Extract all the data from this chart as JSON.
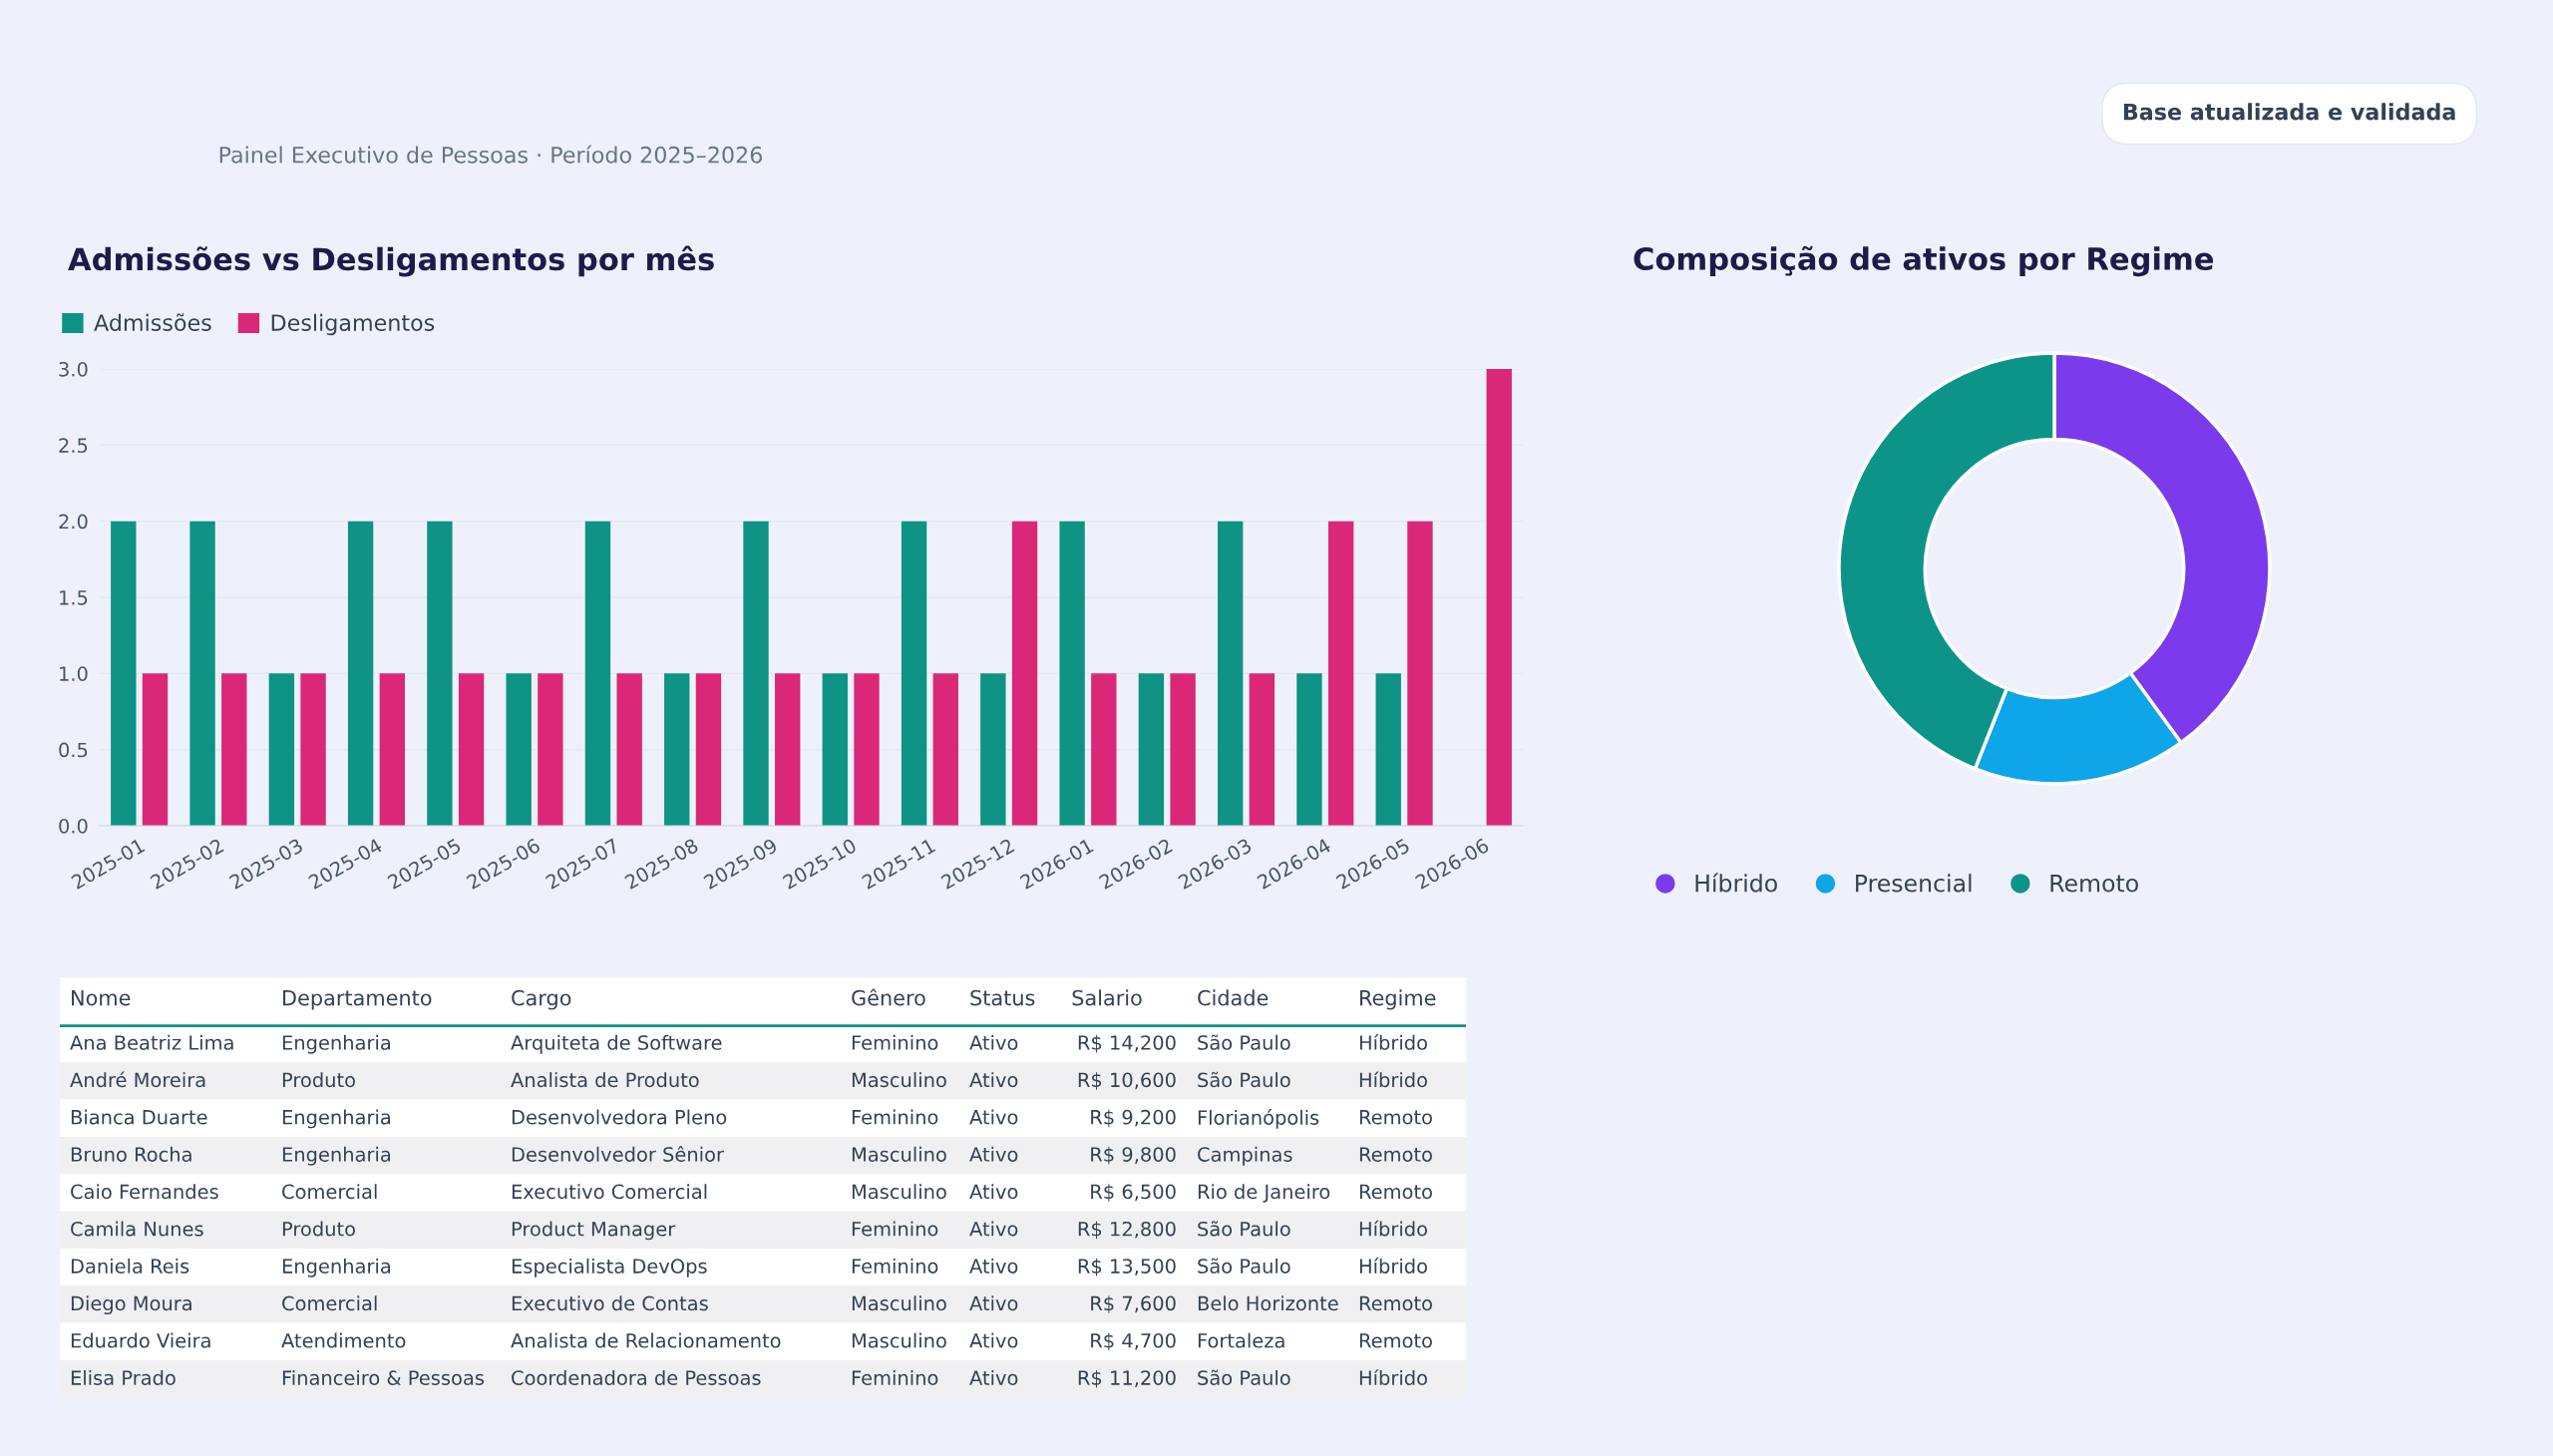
{
  "chart_data": [
    {
      "type": "other",
      "subtitle": "Painel Executivo de Pessoas · Período 2025–2026",
      "annotations": [
        "Base atualizada e validada"
      ]
    },
    {
      "type": "bar",
      "title": "Admissões vs Desligamentos por mês",
      "categories": [
        "2025-01",
        "2025-02",
        "2025-03",
        "2025-04",
        "2025-05",
        "2025-06",
        "2025-07",
        "2025-08",
        "2025-09",
        "2025-10",
        "2025-11",
        "2025-12",
        "2026-01",
        "2026-02",
        "2026-03",
        "2026-04",
        "2026-05",
        "2026-06"
      ],
      "series": [
        {
          "name": "Admissões",
          "color": "#0e9384",
          "values": [
            2,
            2,
            1,
            2,
            2,
            1,
            2,
            1,
            2,
            1,
            2,
            1,
            2,
            1,
            2,
            1,
            1,
            0
          ]
        },
        {
          "name": "Desligamentos",
          "color": "#db2777",
          "values": [
            1,
            1,
            1,
            1,
            1,
            1,
            1,
            1,
            1,
            1,
            1,
            2,
            1,
            1,
            1,
            2,
            2,
            3
          ]
        }
      ],
      "ylim": [
        0,
        3
      ],
      "yticks": [
        {
          "value": 0,
          "label": "0.0"
        },
        {
          "value": 0.5,
          "label": "0.5"
        },
        {
          "value": 1,
          "label": "1.0"
        },
        {
          "value": 1.5,
          "label": "1.5"
        },
        {
          "value": 2,
          "label": "2.0"
        },
        {
          "value": 2.5,
          "label": "2.5"
        },
        {
          "value": 3,
          "label": "3.0"
        }
      ],
      "grid": "y",
      "legend": "top left"
    },
    {
      "type": "donut",
      "title": "Composição de ativos por Regime",
      "categories": [
        "Híbrido",
        "Presencial",
        "Remoto"
      ],
      "values": [
        40,
        16,
        44
      ],
      "colors": [
        "#7c3aed",
        "#0ea5e9",
        "#0d9488"
      ],
      "legend": "bottom left"
    },
    {
      "type": "other",
      "categories": [
        "Nome",
        "Departamento",
        "Cargo",
        "Gênero",
        "Status",
        "Salario",
        "Cidade",
        "Regime"
      ],
      "cell_labels": [
        [
          "Ana Beatriz Lima",
          "Engenharia",
          "Arquiteta de Software",
          "Feminino",
          "Ativo",
          "R$ 14,200",
          "São Paulo",
          "Híbrido"
        ],
        [
          "André Moreira",
          "Produto",
          "Analista de Produto",
          "Masculino",
          "Ativo",
          "R$ 10,600",
          "São Paulo",
          "Híbrido"
        ],
        [
          "Bianca Duarte",
          "Engenharia",
          "Desenvolvedora Pleno",
          "Feminino",
          "Ativo",
          "R$ 9,200",
          "Florianópolis",
          "Remoto"
        ],
        [
          "Bruno Rocha",
          "Engenharia",
          "Desenvolvedor Sênior",
          "Masculino",
          "Ativo",
          "R$ 9,800",
          "Campinas",
          "Remoto"
        ],
        [
          "Caio Fernandes",
          "Comercial",
          "Executivo Comercial",
          "Masculino",
          "Ativo",
          "R$ 6,500",
          "Rio de Janeiro",
          "Remoto"
        ],
        [
          "Camila Nunes",
          "Produto",
          "Product Manager",
          "Feminino",
          "Ativo",
          "R$ 12,800",
          "São Paulo",
          "Híbrido"
        ],
        [
          "Daniela Reis",
          "Engenharia",
          "Especialista DevOps",
          "Feminino",
          "Ativo",
          "R$ 13,500",
          "São Paulo",
          "Híbrido"
        ],
        [
          "Diego Moura",
          "Comercial",
          "Executivo de Contas",
          "Masculino",
          "Ativo",
          "R$ 7,600",
          "Belo Horizonte",
          "Remoto"
        ],
        [
          "Eduardo Vieira",
          "Atendimento",
          "Analista de Relacionamento",
          "Masculino",
          "Ativo",
          "R$ 4,700",
          "Fortaleza",
          "Remoto"
        ],
        [
          "Elisa Prado",
          "Financeiro & Pessoas",
          "Coordenadora de Pessoas",
          "Feminino",
          "Ativo",
          "R$ 11,200",
          "São Paulo",
          "Híbrido"
        ]
      ]
    }
  ]
}
